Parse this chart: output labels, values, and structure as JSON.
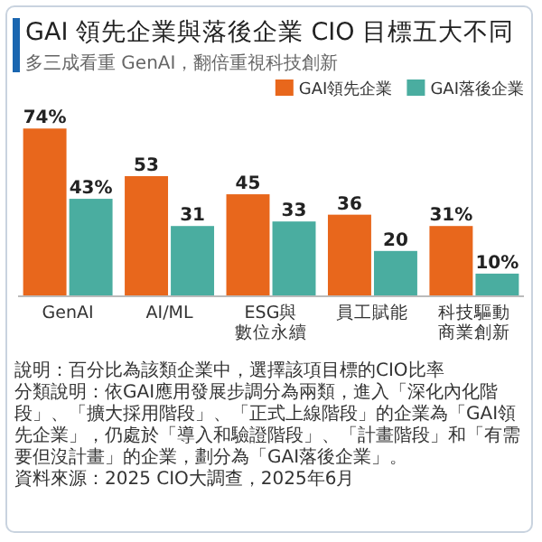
{
  "chart_data": {
    "type": "bar",
    "title": "GAI 領先企業與落後企業 CIO 目標五大不同",
    "subtitle": "多三成看重 GenAI，翻倍重視科技創新",
    "categories": [
      "GenAI",
      "AI/ML",
      "ESG與數位永續",
      "員工賦能",
      "科技驅動商業創新"
    ],
    "series": [
      {
        "name": "GAI領先企業",
        "color": "#e8671c",
        "values": [
          74,
          53,
          45,
          36,
          31
        ],
        "value_labels": [
          "74%",
          "53",
          "45",
          "36",
          "31%"
        ]
      },
      {
        "name": "GAI落後企業",
        "color": "#4aada0",
        "values": [
          43,
          31,
          33,
          20,
          10
        ],
        "value_labels": [
          "43%",
          "31",
          "33",
          "20",
          "10%"
        ]
      }
    ],
    "legend": "top right",
    "grid": false,
    "annotations": [
      "說明：百分比為該類企業中，選擇該項目標的CIO比率",
      "分類說明：依GAI應用發展步調分為兩類，進入「深化內化階段」、「擴大採用階段」、「正式上線階段」的企業為「GAI領先企業」，仍處於「導入和驗證階段」、「計畫階段」和「有需要但沒計畫」的企業，劃分為「GAI落後企業」。",
      "資料來源：2025 CIO大調查，2025年6月"
    ]
  }
}
